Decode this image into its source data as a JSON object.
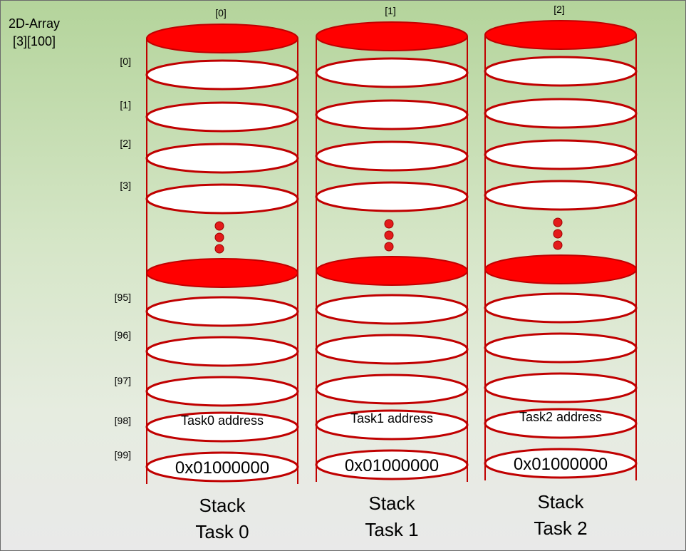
{
  "array_title": "2D-Array\n[3][100]",
  "column_indices": [
    "[0]",
    "[1]",
    "[2]"
  ],
  "row_indices": [
    "[0]",
    "[1]",
    "[2]",
    "[3]",
    "[95]",
    "[96]",
    "[97]",
    "[98]",
    "[99]"
  ],
  "stacks": [
    {
      "address_label": "Task0 address",
      "address_value": "0x01000000",
      "label_line1": "Stack",
      "label_line2": "Task 0"
    },
    {
      "address_label": "Task1 address",
      "address_value": "0x01000000",
      "label_line1": "Stack",
      "label_line2": "Task 1"
    },
    {
      "address_label": "Task2 address",
      "address_value": "0x01000000",
      "label_line1": "Stack",
      "label_line2": "Task 2"
    }
  ],
  "colors": {
    "disk_red": "#ff0000",
    "outline_red": "#c00000",
    "disk_white": "#ffffff",
    "dot_red": "#e31b1b",
    "background_top": "#b4d49b",
    "background_bottom": "#e9e9e9"
  }
}
